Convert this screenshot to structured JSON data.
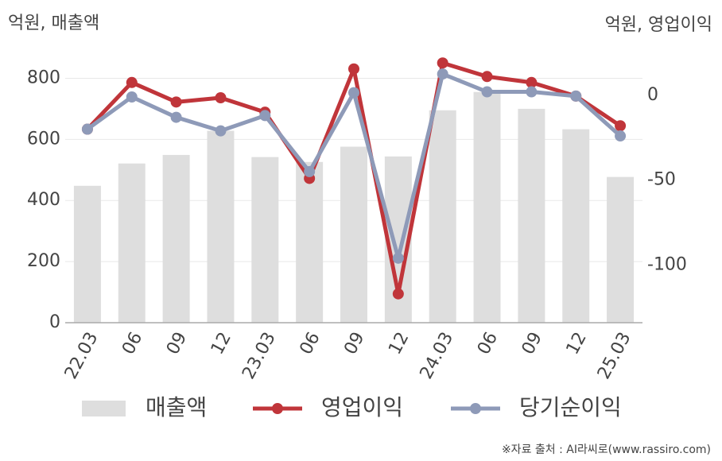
{
  "chart_data": {
    "type": "bar-line",
    "y_label": "억원, 매출액",
    "y2_label": "억원, 영업이익",
    "source": "※자료 출처 : AI라씨로(www.rassiro.com)",
    "categories": [
      "22.03",
      "06",
      "09",
      "12",
      "23.03",
      "06",
      "09",
      "12",
      "24.03",
      "06",
      "09",
      "12",
      "25.03"
    ],
    "series": [
      {
        "name": "매출액",
        "color": "#dedede",
        "axis": "y",
        "kind": "bar",
        "values": [
          448,
          521,
          549,
          628,
          542,
          526,
          576,
          544,
          695,
          755,
          700,
          633,
          477
        ]
      },
      {
        "name": "영업이익",
        "color": "#c0353a",
        "axis": "y2",
        "kind": "line",
        "values": [
          -20,
          7.5,
          -4,
          -1.5,
          -10,
          -49,
          15.5,
          -117,
          19,
          11,
          7.5,
          -0.5,
          -18
        ]
      },
      {
        "name": "당기순이익",
        "color": "#8e9ab8",
        "axis": "y2",
        "kind": "line",
        "values": [
          -20,
          -1,
          -13,
          -21,
          -12,
          -45,
          1.5,
          -96,
          12.5,
          2,
          2,
          -0.5,
          -24
        ]
      }
    ],
    "ylim": [
      0,
      900
    ],
    "yticks": [
      0,
      200,
      400,
      600,
      800
    ],
    "y2lim": [
      -134,
      28
    ],
    "y2ticks": [
      -100,
      -50,
      0
    ],
    "grid": true
  }
}
